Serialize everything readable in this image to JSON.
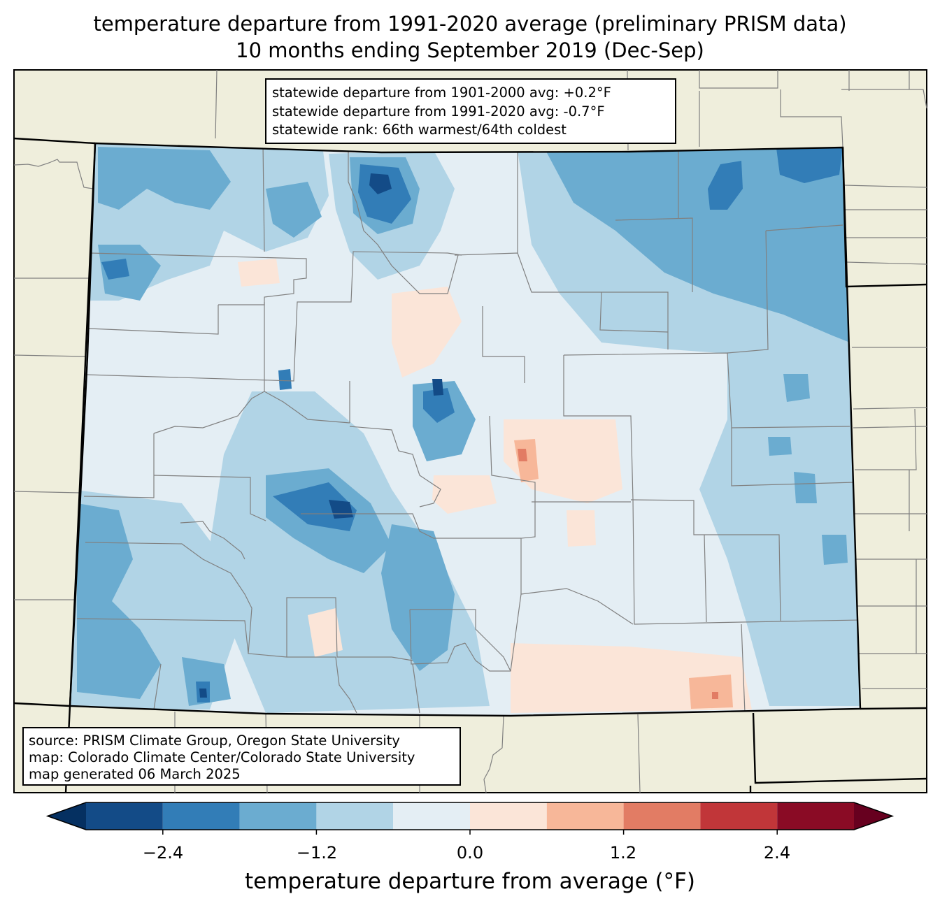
{
  "title": {
    "line1": "temperature departure from 1991-2020 average (preliminary PRISM data)",
    "line2": "10 months ending September 2019 (Dec-Sep)"
  },
  "stats": {
    "line1": "statewide departure from 1901-2000 avg: +0.2°F",
    "line2": "statewide departure from 1991-2020 avg: -0.7°F",
    "line3": "statewide rank: 66th warmest/64th coldest"
  },
  "source": {
    "line1": "source: PRISM Climate Group, Oregon State University",
    "line2": "map: Colorado Climate Center/Colorado State University",
    "line3": "map generated 06 March 2025"
  },
  "colorbar": {
    "label": "temperature departure from average (°F)",
    "ticks": [
      "−2.4",
      "−1.2",
      "0.0",
      "1.2",
      "2.4"
    ],
    "bins": [
      {
        "min": null,
        "max": -3.0,
        "color": "#053061"
      },
      {
        "min": -3.0,
        "max": -2.4,
        "color": "#134b87"
      },
      {
        "min": -2.4,
        "max": -1.8,
        "color": "#327db7"
      },
      {
        "min": -1.8,
        "max": -1.2,
        "color": "#6bacd0"
      },
      {
        "min": -1.2,
        "max": -0.6,
        "color": "#b1d4e6"
      },
      {
        "min": -0.6,
        "max": 0.0,
        "color": "#e4eef4"
      },
      {
        "min": 0.0,
        "max": 0.6,
        "color": "#fbe5d8"
      },
      {
        "min": 0.6,
        "max": 1.2,
        "color": "#f7b799"
      },
      {
        "min": 1.2,
        "max": 1.8,
        "color": "#e27c64"
      },
      {
        "min": 1.8,
        "max": 2.4,
        "color": "#c13639"
      },
      {
        "min": 2.4,
        "max": 3.0,
        "color": "#8a0b25"
      },
      {
        "min": 3.0,
        "max": null,
        "color": "#67001f"
      }
    ]
  },
  "map": {
    "land_color": "#efeedc",
    "state_border_color": "#000000",
    "county_line_color": "#808080"
  }
}
